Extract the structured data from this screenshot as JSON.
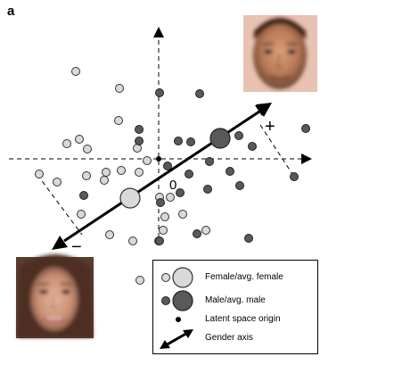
{
  "panel_label": "a",
  "labels": {
    "plus": "+",
    "minus": "−",
    "origin": "0"
  },
  "faces": {
    "male": "average-male-face",
    "female": "average-female-face"
  },
  "legend": {
    "female": "Female/avg. female",
    "male": "Male/avg. male",
    "origin": "Latent space origin",
    "axis": "Gender axis"
  },
  "colors": {
    "female": "#d9d9d9",
    "male": "#595959",
    "outline": "#333333"
  }
}
